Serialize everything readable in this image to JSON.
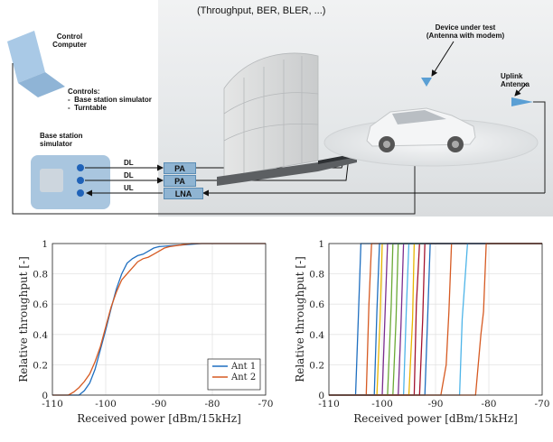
{
  "diagram": {
    "header": "(Throughput, BER, BLER, ...)",
    "computer": {
      "line1": "Control",
      "line2": "Computer"
    },
    "controls": {
      "title": "Controls:",
      "items": [
        "Base station simulator",
        "Turntable"
      ]
    },
    "bss": {
      "line1": "Base station",
      "line2": "simulator"
    },
    "signals": [
      {
        "arrow": "DL",
        "box": "PA"
      },
      {
        "arrow": "DL",
        "box": "PA"
      },
      {
        "arrow": "UL",
        "box": "LNA"
      }
    ],
    "dut": {
      "line1": "Device under test",
      "line2": "(Antenna with modem)"
    },
    "uplink": "Uplink Antenna",
    "colors": {
      "box_fill": "#8fb4d2",
      "bss_fill": "#a9c6df",
      "port": "#1f62b8",
      "scene_bg": "#e6e9ea"
    }
  },
  "chart_data": [
    {
      "type": "line",
      "xlabel": "Received power [dBm/15kHz]",
      "ylabel": "Relative throughput [-]",
      "xlim": [
        -110,
        -70
      ],
      "ylim": [
        0,
        1
      ],
      "xticks": [
        -110,
        -100,
        -90,
        -80,
        -70
      ],
      "xtick_labels": [
        "-110",
        "-100",
        "-90",
        "-80",
        "-70"
      ],
      "yticks": [
        0,
        0.2,
        0.4,
        0.6,
        0.8,
        1
      ],
      "ytick_labels": [
        "0",
        "0.2",
        "0.4",
        "0.6",
        "0.8",
        "1"
      ],
      "grid": true,
      "legend": "bottom-right",
      "series": [
        {
          "name": "Ant 1",
          "color": "#1f6fc0",
          "x": [
            -110,
            -105,
            -104,
            -103,
            -102,
            -101,
            -100,
            -99,
            -98,
            -97,
            -96,
            -95,
            -94,
            -93,
            -92,
            -91,
            -90,
            -88,
            -86,
            -84,
            -82,
            -80,
            -78,
            -76,
            -74,
            -72,
            -70
          ],
          "y": [
            0,
            0,
            0.03,
            0.08,
            0.17,
            0.3,
            0.43,
            0.57,
            0.7,
            0.8,
            0.87,
            0.9,
            0.92,
            0.93,
            0.95,
            0.97,
            0.98,
            0.985,
            0.99,
            0.995,
            1,
            1,
            1,
            1,
            1,
            1,
            1
          ]
        },
        {
          "name": "Ant 2",
          "color": "#d65a22",
          "x": [
            -110,
            -107,
            -106,
            -105,
            -104,
            -103,
            -102,
            -101,
            -100,
            -99,
            -98,
            -97,
            -96,
            -95,
            -94,
            -93,
            -92,
            -91,
            -90,
            -89,
            -88,
            -86,
            -84,
            -82,
            -80,
            -78,
            -76,
            -74,
            -72,
            -70
          ],
          "y": [
            0,
            0,
            0.02,
            0.05,
            0.09,
            0.14,
            0.22,
            0.32,
            0.45,
            0.58,
            0.68,
            0.76,
            0.8,
            0.84,
            0.88,
            0.9,
            0.91,
            0.93,
            0.95,
            0.97,
            0.98,
            0.99,
            1,
            1,
            1,
            1,
            1,
            1,
            1,
            1
          ]
        }
      ]
    },
    {
      "type": "line",
      "xlabel": "Received power [dBm/15kHz]",
      "ylabel": "Relative throughput [-]",
      "xlim": [
        -110,
        -70
      ],
      "ylim": [
        0,
        1
      ],
      "xticks": [
        -110,
        -100,
        -90,
        -80,
        -70
      ],
      "xtick_labels": [
        "-110",
        "-100",
        "-90",
        "-80",
        "-70"
      ],
      "yticks": [
        0,
        0.2,
        0.4,
        0.6,
        0.8,
        1
      ],
      "ytick_labels": [
        "0",
        "0.2",
        "0.4",
        "0.6",
        "0.8",
        "1"
      ],
      "grid": true,
      "series": [
        {
          "color": "#1f6fc0",
          "x": [
            -110,
            -105,
            -104.5,
            -104,
            -70
          ],
          "y": [
            0,
            0,
            0.5,
            1,
            1
          ]
        },
        {
          "color": "#d65a22",
          "x": [
            -110,
            -103,
            -102.5,
            -102,
            -70
          ],
          "y": [
            0,
            0,
            0.6,
            1,
            1
          ]
        },
        {
          "color": "#e8b400",
          "x": [
            -110,
            -101,
            -100.4,
            -100,
            -72
          ],
          "y": [
            0,
            0,
            0.5,
            1,
            1
          ]
        },
        {
          "color": "#7b2d8e",
          "x": [
            -110,
            -100,
            -99.4,
            -99,
            -70
          ],
          "y": [
            0,
            0,
            0.6,
            1,
            1
          ]
        },
        {
          "color": "#6aa936",
          "x": [
            -110,
            -98,
            -97.4,
            -97,
            -70
          ],
          "y": [
            0,
            0,
            0.5,
            1,
            1
          ]
        },
        {
          "color": "#4db4e8",
          "x": [
            -110,
            -96,
            -95.5,
            -95,
            -70
          ],
          "y": [
            0,
            0,
            0.55,
            1,
            1
          ]
        },
        {
          "color": "#a3142f",
          "x": [
            -110,
            -94,
            -93.6,
            -93,
            -70
          ],
          "y": [
            0,
            0,
            0.6,
            1,
            1
          ]
        },
        {
          "color": "#1f6fc0",
          "x": [
            -110,
            -92,
            -91.5,
            -91,
            -70
          ],
          "y": [
            0,
            0,
            0.5,
            1,
            1
          ]
        },
        {
          "color": "#d65a22",
          "x": [
            -110,
            -89,
            -88,
            -87.5,
            -87,
            -70
          ],
          "y": [
            0,
            0,
            0.2,
            0.55,
            1,
            1
          ]
        },
        {
          "color": "#e8b400",
          "x": [
            -110,
            -95,
            -94.3,
            -94,
            -70
          ],
          "y": [
            0,
            0,
            0.5,
            1,
            1
          ]
        },
        {
          "color": "#7b2d8e",
          "x": [
            -110,
            -97,
            -96.5,
            -96,
            -70
          ],
          "y": [
            0,
            0,
            0.45,
            1,
            1
          ]
        },
        {
          "color": "#6aa936",
          "x": [
            -110,
            -99,
            -98.3,
            -98,
            -70
          ],
          "y": [
            0,
            0,
            0.6,
            1,
            1
          ]
        },
        {
          "color": "#4db4e8",
          "x": [
            -110,
            -85.5,
            -85,
            -84,
            -70
          ],
          "y": [
            0,
            0,
            0.5,
            1,
            1
          ]
        },
        {
          "color": "#a3142f",
          "x": [
            -110,
            -93,
            -92.4,
            -92,
            -70
          ],
          "y": [
            0,
            0,
            0.5,
            1,
            1
          ]
        },
        {
          "color": "#1f6fc0",
          "x": [
            -110,
            -101.5,
            -101,
            -100.5,
            -70
          ],
          "y": [
            0,
            0,
            0.55,
            1,
            1
          ]
        },
        {
          "color": "#d65a22",
          "x": [
            -110,
            -82.5,
            -81.5,
            -81,
            -80.5,
            -70
          ],
          "y": [
            0,
            0,
            0.4,
            0.55,
            1,
            1
          ]
        }
      ]
    }
  ]
}
